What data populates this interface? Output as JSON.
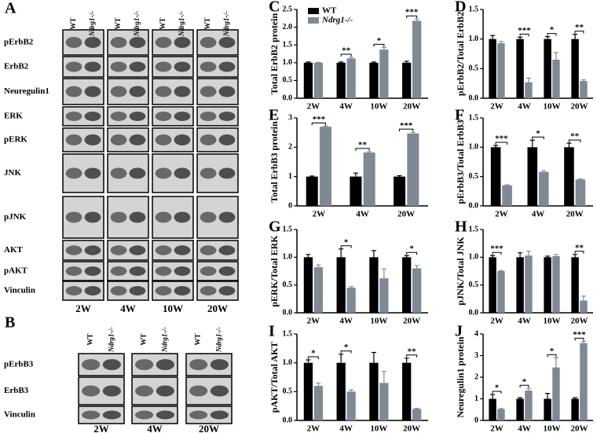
{
  "blots": [
    {
      "label": "A",
      "columns": [
        "WT",
        "Ndrg1-/-"
      ],
      "rows": [
        "pErbB2",
        "ErbB2",
        "Neuregulin1",
        "ERK",
        "pERK",
        "JNK",
        "pJNK",
        "AKT",
        "pAKT",
        "Vinculin"
      ],
      "times": [
        "2W",
        "4W",
        "10W",
        "20W"
      ]
    },
    {
      "label": "B",
      "columns": [
        "WT",
        "Ndrg1-/-"
      ],
      "rows": [
        "pErbB3",
        "ErbB3",
        "Vinculin"
      ],
      "times": [
        "2W",
        "4W",
        "20W"
      ]
    }
  ],
  "chart_data": [
    {
      "type": "bar",
      "label": "C",
      "y_label": "Total ErbB2 protein",
      "categories": [
        "2W",
        "4W",
        "10W",
        "20W"
      ],
      "legend": true,
      "series": [
        {
          "name": "WT",
          "color": "#000000",
          "values": [
            1,
            1,
            1,
            1
          ],
          "errors": [
            0.02,
            0.02,
            0.02,
            0.04
          ]
        },
        {
          "name": "Ndrg1-/-",
          "color": "#7f8994",
          "values": [
            1.0,
            1.12,
            1.37,
            2.18
          ],
          "errors": [
            0.01,
            0.03,
            0.06,
            0.05
          ]
        }
      ],
      "significance": [
        null,
        "**",
        "*",
        "***"
      ],
      "ylim": [
        0,
        2.5
      ],
      "yticks": [
        {
          "value": 0,
          "label": "0.0"
        },
        {
          "value": 0.5,
          "label": "0.5"
        },
        {
          "value": 1,
          "label": "1.0"
        },
        {
          "value": 1.5,
          "label": "1.5"
        },
        {
          "value": 2,
          "label": "2.0"
        },
        {
          "value": 2.5,
          "label": "2.5"
        }
      ]
    },
    {
      "type": "bar",
      "label": "D",
      "y_label": "pErbB2/Total ErbB2",
      "categories": [
        "2W",
        "4W",
        "10W",
        "20W"
      ],
      "legend": false,
      "series": [
        {
          "name": "WT",
          "color": "#000000",
          "values": [
            1,
            1,
            1,
            1
          ],
          "errors": [
            0.06,
            0.03,
            0.04,
            0.08
          ]
        },
        {
          "name": "Ndrg1-/-",
          "color": "#7f8994",
          "values": [
            0.93,
            0.27,
            0.65,
            0.29
          ],
          "errors": [
            0.03,
            0.07,
            0.12,
            0.02
          ]
        }
      ],
      "significance": [
        null,
        "***",
        "*",
        "**"
      ],
      "ylim": [
        0,
        1.5
      ],
      "yticks": [
        {
          "value": 0,
          "label": "0.0"
        },
        {
          "value": 0.5,
          "label": "0.5"
        },
        {
          "value": 1,
          "label": "1.0"
        },
        {
          "value": 1.5,
          "label": "1.5"
        }
      ]
    },
    {
      "type": "bar",
      "label": "E",
      "y_label": "Total ErbB3 protein",
      "categories": [
        "2W",
        "4W",
        "20W"
      ],
      "legend": false,
      "series": [
        {
          "name": "WT",
          "color": "#000000",
          "values": [
            1,
            1,
            1
          ],
          "errors": [
            0.02,
            0.12,
            0.03
          ]
        },
        {
          "name": "Ndrg1-/-",
          "color": "#7f8994",
          "values": [
            2.7,
            1.82,
            2.47
          ],
          "errors": [
            0.02,
            0.03,
            0.04
          ]
        }
      ],
      "significance": [
        "***",
        "**",
        "***"
      ],
      "ylim": [
        0,
        3
      ],
      "yticks": [
        0,
        1,
        2,
        3
      ]
    },
    {
      "type": "bar",
      "label": "F",
      "y_label": "pErbB3/Total ErbB3",
      "categories": [
        "2W",
        "4W",
        "20W"
      ],
      "legend": false,
      "series": [
        {
          "name": "WT",
          "color": "#000000",
          "values": [
            1,
            1,
            1
          ],
          "errors": [
            0.03,
            0.12,
            0.07
          ]
        },
        {
          "name": "Ndrg1-/-",
          "color": "#7f8994",
          "values": [
            0.35,
            0.58,
            0.45
          ],
          "errors": [
            0.01,
            0.02,
            0.01
          ]
        }
      ],
      "significance": [
        "***",
        "*",
        "**"
      ],
      "ylim": [
        0,
        1.5
      ],
      "yticks": [
        {
          "value": 0,
          "label": "0.0"
        },
        {
          "value": 0.5,
          "label": "0.5"
        },
        {
          "value": 1,
          "label": "1.0"
        },
        {
          "value": 1.5,
          "label": "1.5"
        }
      ]
    },
    {
      "type": "bar",
      "label": "G",
      "y_label": "pERK/Total ERK",
      "categories": [
        "2W",
        "4W",
        "10W",
        "20W"
      ],
      "legend": false,
      "series": [
        {
          "name": "WT",
          "color": "#000000",
          "values": [
            1,
            1,
            1,
            1
          ],
          "errors": [
            0.05,
            0.15,
            0.12,
            0.03
          ]
        },
        {
          "name": "Ndrg1-/-",
          "color": "#7f8994",
          "values": [
            0.82,
            0.45,
            0.62,
            0.8
          ],
          "errors": [
            0.04,
            0.02,
            0.17,
            0.05
          ]
        }
      ],
      "significance": [
        null,
        "*",
        null,
        "*"
      ],
      "ylim": [
        0,
        1.5
      ],
      "yticks": [
        {
          "value": 0,
          "label": "0.0"
        },
        {
          "value": 0.5,
          "label": "0.5"
        },
        {
          "value": 1,
          "label": "1.0"
        },
        {
          "value": 1.5,
          "label": "1.5"
        }
      ]
    },
    {
      "type": "bar",
      "label": "H",
      "y_label": "pJNK/Total JNK",
      "categories": [
        "2W",
        "4W",
        "10W",
        "20W"
      ],
      "legend": false,
      "series": [
        {
          "name": "WT",
          "color": "#000000",
          "values": [
            1,
            1,
            1,
            1
          ],
          "errors": [
            0.03,
            0.08,
            0.02,
            0.05
          ]
        },
        {
          "name": "Ndrg1-/-",
          "color": "#7f8994",
          "values": [
            0.75,
            1.03,
            1.02,
            0.22
          ],
          "errors": [
            0.01,
            0.08,
            0.03,
            0.08
          ]
        }
      ],
      "significance": [
        "***",
        null,
        null,
        "**"
      ],
      "ylim": [
        0,
        1.5
      ],
      "yticks": [
        {
          "value": 0,
          "label": "0.0"
        },
        {
          "value": 0.5,
          "label": "0.5"
        },
        {
          "value": 1,
          "label": "1.0"
        },
        {
          "value": 1.5,
          "label": "1.5"
        }
      ]
    },
    {
      "type": "bar",
      "label": "I",
      "y_label": "pAKT/Total AKT",
      "categories": [
        "2W",
        "4W",
        "10W",
        "20W"
      ],
      "legend": false,
      "series": [
        {
          "name": "WT",
          "color": "#000000",
          "values": [
            1,
            1,
            1,
            1
          ],
          "errors": [
            0.05,
            0.15,
            0.18,
            0.08
          ]
        },
        {
          "name": "Ndrg1-/-",
          "color": "#7f8994",
          "values": [
            0.6,
            0.5,
            0.65,
            0.2
          ],
          "errors": [
            0.05,
            0.03,
            0.2,
            0.01
          ]
        }
      ],
      "significance": [
        "*",
        "*",
        null,
        "**"
      ],
      "ylim": [
        0,
        1.5
      ],
      "yticks": [
        {
          "value": 0,
          "label": "0.0"
        },
        {
          "value": 0.5,
          "label": "0.5"
        },
        {
          "value": 1,
          "label": "1.0"
        },
        {
          "value": 1.5,
          "label": "1.5"
        }
      ]
    },
    {
      "type": "bar",
      "label": "J",
      "y_label": "Neuregulin1 protein",
      "categories": [
        "2W",
        "4W",
        "10W",
        "20W"
      ],
      "legend": false,
      "series": [
        {
          "name": "WT",
          "color": "#000000",
          "values": [
            1,
            1,
            1,
            1
          ],
          "errors": [
            0.2,
            0.05,
            0.25,
            0.05
          ]
        },
        {
          "name": "Ndrg1-/-",
          "color": "#7f8994",
          "values": [
            0.52,
            1.38,
            2.45,
            3.58
          ],
          "errors": [
            0.03,
            0.1,
            0.45,
            0.08
          ]
        }
      ],
      "significance": [
        "*",
        "*",
        "*",
        "***"
      ],
      "ylim": [
        0,
        4
      ],
      "yticks": [
        0,
        1,
        2,
        3,
        4
      ]
    }
  ]
}
